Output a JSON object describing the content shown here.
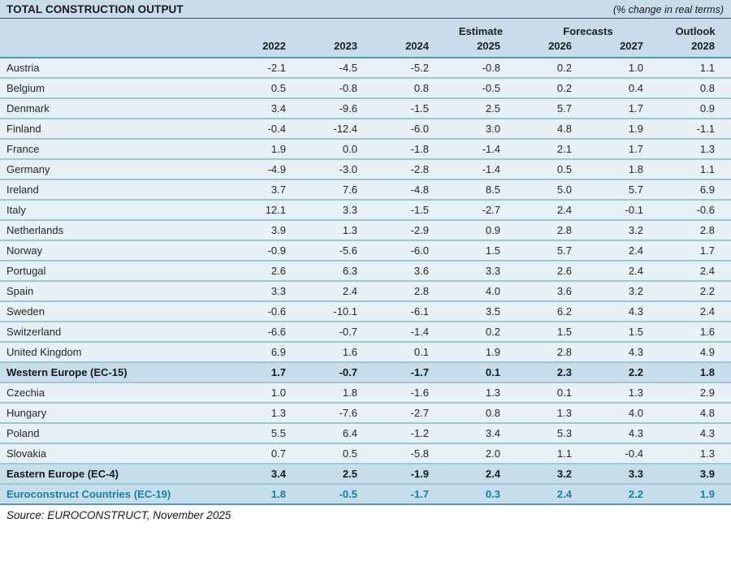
{
  "chart_data": {
    "type": "table",
    "title": "TOTAL CONSTRUCTION OUTPUT",
    "subtitle": "(% change in real terms)",
    "source": "Source: EUROCONSTRUCT, November 2025",
    "years": [
      "2022",
      "2023",
      "2024",
      "2025",
      "2026",
      "2027",
      "2028"
    ],
    "column_groups": [
      {
        "label": "Estimate",
        "span": 1
      },
      {
        "label": "Forecasts",
        "span": 2
      },
      {
        "label": "Outlook",
        "span": 1
      }
    ],
    "rows": [
      {
        "name": "Austria",
        "style": "country",
        "values": [
          -2.1,
          -4.5,
          -5.2,
          -0.8,
          0.2,
          1.0,
          1.1
        ]
      },
      {
        "name": "Belgium",
        "style": "country",
        "values": [
          0.5,
          -0.8,
          0.8,
          -0.5,
          0.2,
          0.4,
          0.8
        ]
      },
      {
        "name": "Denmark",
        "style": "country",
        "values": [
          3.4,
          -9.6,
          -1.5,
          2.5,
          5.7,
          1.7,
          0.9
        ]
      },
      {
        "name": "Finland",
        "style": "country",
        "values": [
          -0.4,
          -12.4,
          -6.0,
          3.0,
          4.8,
          1.9,
          -1.1
        ]
      },
      {
        "name": "France",
        "style": "country",
        "values": [
          1.9,
          0.0,
          -1.8,
          -1.4,
          2.1,
          1.7,
          1.3
        ]
      },
      {
        "name": "Germany",
        "style": "country",
        "values": [
          -4.9,
          -3.0,
          -2.8,
          -1.4,
          0.5,
          1.8,
          1.1
        ]
      },
      {
        "name": "Ireland",
        "style": "country",
        "values": [
          3.7,
          7.6,
          -4.8,
          8.5,
          5.0,
          5.7,
          6.9
        ]
      },
      {
        "name": "Italy",
        "style": "country",
        "values": [
          12.1,
          3.3,
          -1.5,
          -2.7,
          2.4,
          -0.1,
          -0.6
        ]
      },
      {
        "name": "Netherlands",
        "style": "country",
        "values": [
          3.9,
          1.3,
          -2.9,
          0.9,
          2.8,
          3.2,
          2.8
        ]
      },
      {
        "name": "Norway",
        "style": "country",
        "values": [
          -0.9,
          -5.6,
          -6.0,
          1.5,
          5.7,
          2.4,
          1.7
        ]
      },
      {
        "name": "Portugal",
        "style": "country",
        "values": [
          2.6,
          6.3,
          3.6,
          3.3,
          2.6,
          2.4,
          2.4
        ]
      },
      {
        "name": "Spain",
        "style": "country",
        "values": [
          3.3,
          2.4,
          2.8,
          4.0,
          3.6,
          3.2,
          2.2
        ]
      },
      {
        "name": "Sweden",
        "style": "country",
        "values": [
          -0.6,
          -10.1,
          -6.1,
          3.5,
          6.2,
          4.3,
          2.4
        ]
      },
      {
        "name": "Switzerland",
        "style": "country",
        "values": [
          -6.6,
          -0.7,
          -1.4,
          0.2,
          1.5,
          1.5,
          1.6
        ]
      },
      {
        "name": "United Kingdom",
        "style": "country",
        "values": [
          6.9,
          1.6,
          0.1,
          1.9,
          2.8,
          4.3,
          4.9
        ]
      },
      {
        "name": "Western Europe (EC-15)",
        "style": "subtotal",
        "values": [
          1.7,
          -0.7,
          -1.7,
          0.1,
          2.3,
          2.2,
          1.8
        ]
      },
      {
        "name": "Czechia",
        "style": "country",
        "values": [
          1.0,
          1.8,
          -1.6,
          1.3,
          0.1,
          1.3,
          2.9
        ]
      },
      {
        "name": "Hungary",
        "style": "country",
        "values": [
          1.3,
          -7.6,
          -2.7,
          0.8,
          1.3,
          4.0,
          4.8
        ]
      },
      {
        "name": "Poland",
        "style": "country",
        "values": [
          5.5,
          6.4,
          -1.2,
          3.4,
          5.3,
          4.3,
          4.3
        ]
      },
      {
        "name": "Slovakia",
        "style": "country",
        "values": [
          0.7,
          0.5,
          -5.8,
          2.0,
          1.1,
          -0.4,
          1.3
        ]
      },
      {
        "name": "Eastern Europe (EC-4)",
        "style": "subtotal",
        "values": [
          3.4,
          2.5,
          -1.9,
          2.4,
          3.2,
          3.3,
          3.9
        ]
      },
      {
        "name": "Euroconstruct Countries (EC-19)",
        "style": "total",
        "values": [
          1.8,
          -0.5,
          -1.7,
          0.3,
          2.4,
          2.2,
          1.9
        ]
      }
    ],
    "colors": {
      "header_bg": "#c8dcea",
      "row_bg": "#e9f1f8",
      "highlight_row_bg": "#c6deea",
      "row_separator": "#9cc9d8",
      "strong_line": "#4e9ac6",
      "accent_text": "#0e81ae",
      "text": "#15191e"
    }
  }
}
